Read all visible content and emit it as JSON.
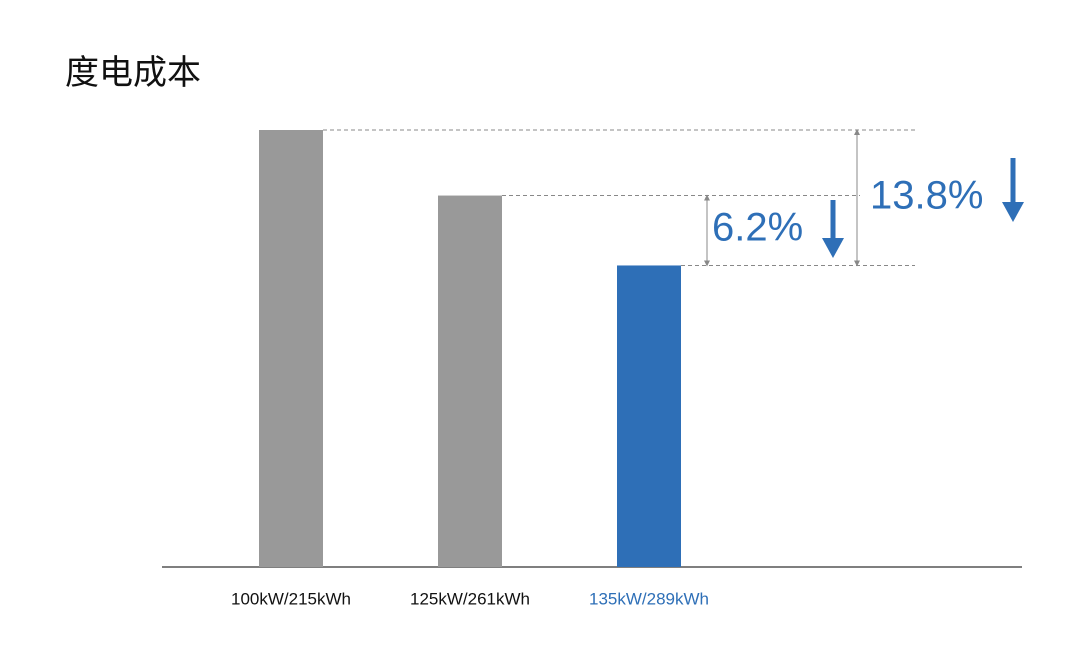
{
  "chart_data": {
    "type": "bar",
    "title": "度电成本",
    "categories": [
      "100kW/215kWh",
      "125kW/261kWh",
      "135kW/289kWh"
    ],
    "values": [
      100,
      85,
      69
    ],
    "colors": [
      "#999999",
      "#999999",
      "#2e6fb7"
    ],
    "ylim": [
      0,
      100
    ],
    "annotations": [
      "13.8%",
      "6.2%"
    ]
  }
}
